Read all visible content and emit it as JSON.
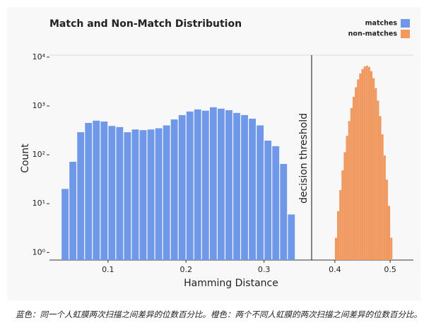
{
  "chart_data": [
    {
      "type": "histogram",
      "title": "Match and Non-Match Distribution",
      "xlabel": "Hamming Distance",
      "ylabel": "Count",
      "log_y": true,
      "legend": "upper right",
      "bins": [
        0.04,
        0.05,
        0.06,
        0.07,
        0.08,
        0.09,
        0.1,
        0.11,
        0.12,
        0.13,
        0.14,
        0.15,
        0.16,
        0.17,
        0.18,
        0.19,
        0.2,
        0.21,
        0.22,
        0.23,
        0.24,
        0.25,
        0.26,
        0.27,
        0.28,
        0.29,
        0.3,
        0.31,
        0.32,
        0.33,
        0.34
      ],
      "series": [
        {
          "name": "matches",
          "color": "#7098e8",
          "values": [
            20,
            72,
            290,
            450,
            500,
            480,
            390,
            370,
            290,
            330,
            320,
            330,
            350,
            400,
            530,
            650,
            770,
            850,
            800,
            940,
            880,
            820,
            720,
            650,
            550,
            400,
            195,
            150,
            65,
            6
          ]
        }
      ],
      "xlim": [
        0.025,
        0.361
      ],
      "xticks": [
        0.1,
        0.2,
        0.3
      ],
      "ylim": [
        0.7,
        11000
      ],
      "yticks": [
        {
          "value": 1,
          "label": "10⁰"
        },
        {
          "value": 10,
          "label": "10¹"
        },
        {
          "value": 100,
          "label": "10²"
        },
        {
          "value": 1000,
          "label": "10³"
        },
        {
          "value": 10000,
          "label": "10⁴"
        }
      ]
    },
    {
      "type": "histogram",
      "annotation": "decision threshold",
      "log_y": true,
      "bins": [
        0.4,
        0.404,
        0.408,
        0.412,
        0.416,
        0.42,
        0.424,
        0.428,
        0.432,
        0.436,
        0.44,
        0.444,
        0.448,
        0.452,
        0.456,
        0.46,
        0.464,
        0.468,
        0.472,
        0.476,
        0.48,
        0.484,
        0.488,
        0.492,
        0.496,
        0.5,
        0.504
      ],
      "series": [
        {
          "name": "non-matches",
          "color": "#f09a62",
          "values": [
            2,
            7,
            19,
            48,
            113,
            245,
            490,
            910,
            1540,
            2420,
            3500,
            4640,
            5690,
            6430,
            6700,
            6270,
            5150,
            3700,
            2320,
            1290,
            620,
            262,
            97,
            31,
            9,
            2
          ]
        }
      ],
      "xlim": [
        0.358,
        0.542
      ],
      "xticks": [
        0.4,
        0.5
      ]
    }
  ],
  "caption": "蓝色：同一个人虹膜两次扫描之间差异的位数百分比。橙色：两个不同人虹膜的两次扫描之间差异的位数百分比。"
}
